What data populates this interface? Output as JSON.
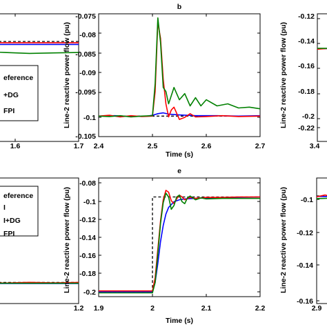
{
  "colors": {
    "reference": "#000000",
    "blue": "#0000ff",
    "red": "#ff0000",
    "green": "#008000"
  },
  "chart_data": [
    {
      "type": "line",
      "panel": "top-left",
      "title": "",
      "xlabel": "",
      "ylabel": "",
      "xlim": [
        1.58,
        1.7
      ],
      "ylim": [
        -0.105,
        -0.075
      ],
      "xticks": [
        "1.6",
        "1.7"
      ],
      "yticks": [],
      "grid": false,
      "legend": {
        "placement": "bottom-left",
        "entries": [
          "eference",
          "+DG",
          "FPI"
        ]
      },
      "series": [
        {
          "color": "#000000",
          "dashed": true,
          "x": [
            1.58,
            1.7
          ],
          "y": [
            -0.0815,
            -0.0815
          ]
        },
        {
          "color": "#0000ff",
          "x": [
            1.58,
            1.7
          ],
          "y": [
            -0.0822,
            -0.0822
          ]
        },
        {
          "color": "#ff0000",
          "x": [
            1.58,
            1.7
          ],
          "y": [
            -0.0818,
            -0.0818
          ]
        },
        {
          "color": "#008000",
          "x": [
            1.58,
            1.6,
            1.62,
            1.64,
            1.66,
            1.68,
            1.7
          ],
          "y": [
            -0.0832,
            -0.0834,
            -0.0838,
            -0.0841,
            -0.0843,
            -0.0842,
            -0.0841
          ]
        }
      ]
    },
    {
      "type": "line",
      "panel": "top-middle",
      "title": "b",
      "xlabel": "Time (s)",
      "ylabel": "Line-2 reactive power flow (pu)",
      "xlim": [
        2.4,
        2.7
      ],
      "ylim": [
        -0.105,
        -0.075
      ],
      "xticks": [
        "2.4",
        "2.5",
        "2.6",
        "2.7"
      ],
      "yticks": [
        "-0.075",
        "-0.08",
        "-0.085",
        "-0.09",
        "-0.095",
        "-0.1",
        "-0.105"
      ],
      "grid": false,
      "series": [
        {
          "color": "#000000",
          "dashed": true,
          "x": [
            2.4,
            2.7
          ],
          "y": [
            -0.1,
            -0.1
          ]
        },
        {
          "color": "#0000ff",
          "x": [
            2.4,
            2.43,
            2.46,
            2.49,
            2.5,
            2.51,
            2.52,
            2.53,
            2.55,
            2.58,
            2.62,
            2.66,
            2.7
          ],
          "y": [
            -0.1,
            -0.0999,
            -0.1001,
            -0.1,
            -0.0998,
            -0.0994,
            -0.0992,
            -0.0995,
            -0.0997,
            -0.0999,
            -0.0999,
            -0.1,
            -0.0999
          ]
        },
        {
          "color": "#ff0000",
          "x": [
            2.4,
            2.42,
            2.44,
            2.46,
            2.48,
            2.5,
            2.505,
            2.51,
            2.515,
            2.52,
            2.525,
            2.53,
            2.535,
            2.54,
            2.545,
            2.55,
            2.56,
            2.57,
            2.58,
            2.6,
            2.63,
            2.66,
            2.7
          ],
          "y": [
            -0.1,
            -0.0998,
            -0.1002,
            -0.0999,
            -0.1001,
            -0.1,
            -0.094,
            -0.077,
            -0.081,
            -0.091,
            -0.097,
            -0.1002,
            -0.0985,
            -0.0978,
            -0.0993,
            -0.1008,
            -0.1003,
            -0.0994,
            -0.1002,
            -0.1001,
            -0.0999,
            -0.1001,
            -0.1
          ]
        },
        {
          "color": "#008000",
          "x": [
            2.4,
            2.42,
            2.44,
            2.46,
            2.48,
            2.5,
            2.505,
            2.51,
            2.515,
            2.52,
            2.525,
            2.53,
            2.54,
            2.55,
            2.56,
            2.57,
            2.58,
            2.59,
            2.6,
            2.62,
            2.64,
            2.66,
            2.68,
            2.7
          ],
          "y": [
            -0.1,
            -0.1001,
            -0.0999,
            -0.1002,
            -0.1,
            -0.0999,
            -0.092,
            -0.076,
            -0.082,
            -0.093,
            -0.094,
            -0.097,
            -0.093,
            -0.096,
            -0.0945,
            -0.0975,
            -0.0955,
            -0.0975,
            -0.096,
            -0.0975,
            -0.097,
            -0.098,
            -0.0978,
            -0.0982
          ]
        }
      ]
    },
    {
      "type": "line",
      "panel": "top-right",
      "title": "",
      "xlabel": "",
      "ylabel": "Line-2 reactive power flow (pu)",
      "xlim": [
        3.4,
        3.6
      ],
      "ylim": [
        -0.23,
        -0.12
      ],
      "xticks": [
        "3.4"
      ],
      "yticks": [
        "-0.12",
        "-0.14",
        "-0.16",
        "-0.18",
        "-0.2",
        "-0.22"
      ],
      "grid": false,
      "series": [
        {
          "color": "#000000",
          "dashed": true,
          "x": [
            3.4,
            3.6
          ],
          "y": [
            -0.15,
            -0.15
          ]
        },
        {
          "color": "#0000ff",
          "x": [
            3.4,
            3.6
          ],
          "y": [
            -0.15,
            -0.15
          ]
        },
        {
          "color": "#ff0000",
          "x": [
            3.4,
            3.42,
            3.44,
            3.46,
            3.48,
            3.5,
            3.52,
            3.54,
            3.56,
            3.58,
            3.6
          ],
          "y": [
            -0.1505,
            -0.1495,
            -0.1505,
            -0.1497,
            -0.1503,
            -0.1498,
            -0.1503,
            -0.1497,
            -0.1502,
            -0.1498,
            -0.1502
          ]
        },
        {
          "color": "#008000",
          "x": [
            3.4,
            3.6
          ],
          "y": [
            -0.1498,
            -0.1498
          ]
        }
      ]
    },
    {
      "type": "line",
      "panel": "bottom-left",
      "title": "",
      "xlabel": "",
      "ylabel": "",
      "xlim": [
        1.08,
        1.2
      ],
      "ylim": [
        -0.205,
        -0.08
      ],
      "xticks": [
        "1.2"
      ],
      "yticks": [],
      "grid": false,
      "legend": {
        "placement": "top-left",
        "entries": [
          "eference",
          "I",
          "I+DG",
          "FPI"
        ]
      },
      "series": [
        {
          "color": "#000000",
          "dashed": true,
          "x": [
            1.08,
            1.2
          ],
          "y": [
            -0.184,
            -0.184
          ]
        },
        {
          "color": "#0000ff",
          "x": [
            1.08,
            1.2
          ],
          "y": [
            -0.185,
            -0.185
          ]
        },
        {
          "color": "#ff0000",
          "x": [
            1.08,
            1.1,
            1.12,
            1.14,
            1.16,
            1.18,
            1.2
          ],
          "y": [
            -0.1835,
            -0.1845,
            -0.1838,
            -0.1846,
            -0.1839,
            -0.1844,
            -0.184
          ]
        },
        {
          "color": "#008000",
          "x": [
            1.08,
            1.2
          ],
          "y": [
            -0.1848,
            -0.1848
          ]
        }
      ]
    },
    {
      "type": "line",
      "panel": "bottom-middle",
      "title": "e",
      "xlabel": "Time (s)",
      "ylabel": "Line-2 reactive power flow (pu)",
      "xlim": [
        1.9,
        2.2
      ],
      "ylim": [
        -0.205,
        -0.08
      ],
      "xticks": [
        "1.9",
        "2",
        "2.1",
        "2.2"
      ],
      "yticks": [
        "-0.08",
        "-0.1",
        "-0.12",
        "-0.14",
        "-0.16",
        "-0.18",
        "-0.2"
      ],
      "grid": false,
      "series": [
        {
          "color": "#000000",
          "dashed": true,
          "x": [
            1.9,
            2.0,
            2.0,
            2.2
          ],
          "y": [
            -0.2,
            -0.2,
            -0.1,
            -0.1
          ]
        },
        {
          "color": "#0000ff",
          "x": [
            1.9,
            1.95,
            2.0,
            2.005,
            2.01,
            2.015,
            2.02,
            2.025,
            2.03,
            2.04,
            2.05,
            2.06,
            2.08,
            2.1,
            2.15,
            2.2
          ],
          "y": [
            -0.2,
            -0.2,
            -0.2,
            -0.19,
            -0.17,
            -0.147,
            -0.13,
            -0.118,
            -0.111,
            -0.105,
            -0.103,
            -0.102,
            -0.1015,
            -0.101,
            -0.1005,
            -0.1
          ]
        },
        {
          "color": "#ff0000",
          "x": [
            1.9,
            1.95,
            2.0,
            2.005,
            2.01,
            2.015,
            2.02,
            2.025,
            2.03,
            2.035,
            2.04,
            2.045,
            2.05,
            2.055,
            2.06,
            2.07,
            2.08,
            2.1,
            2.13,
            2.16,
            2.2
          ],
          "y": [
            -0.199,
            -0.199,
            -0.199,
            -0.185,
            -0.155,
            -0.125,
            -0.103,
            -0.093,
            -0.095,
            -0.104,
            -0.107,
            -0.102,
            -0.098,
            -0.1,
            -0.103,
            -0.1005,
            -0.1015,
            -0.1005,
            -0.1005,
            -0.1,
            -0.1
          ]
        },
        {
          "color": "#008000",
          "x": [
            1.9,
            1.95,
            2.0,
            2.005,
            2.01,
            2.015,
            2.02,
            2.025,
            2.03,
            2.035,
            2.04,
            2.045,
            2.05,
            2.055,
            2.06,
            2.065,
            2.07,
            2.08,
            2.09,
            2.1,
            2.13,
            2.16,
            2.2
          ],
          "y": [
            -0.201,
            -0.201,
            -0.201,
            -0.19,
            -0.16,
            -0.128,
            -0.106,
            -0.096,
            -0.1,
            -0.113,
            -0.109,
            -0.1,
            -0.098,
            -0.105,
            -0.107,
            -0.101,
            -0.099,
            -0.103,
            -0.101,
            -0.102,
            -0.1015,
            -0.1015,
            -0.1015
          ]
        }
      ]
    },
    {
      "type": "line",
      "panel": "bottom-right",
      "title": "",
      "xlabel": "",
      "ylabel": "Line-2 reactive power flow (pu)",
      "xlim": [
        2.9,
        3.1
      ],
      "ylim": [
        -0.16,
        -0.09
      ],
      "xticks": [
        "2.9",
        "3"
      ],
      "yticks": [
        "-0.1",
        "-0.12",
        "-0.14",
        "-0.16"
      ],
      "grid": false,
      "series": [
        {
          "color": "#000000",
          "dashed": true,
          "x": [
            2.9,
            3.1
          ],
          "y": [
            -0.1,
            -0.1
          ]
        },
        {
          "color": "#0000ff",
          "x": [
            2.9,
            3.1
          ],
          "y": [
            -0.1003,
            -0.1003
          ]
        },
        {
          "color": "#ff0000",
          "x": [
            2.9,
            2.91,
            2.92,
            2.93,
            2.94,
            2.95,
            2.96,
            2.97,
            2.98,
            2.99,
            3.0,
            3.02,
            3.04,
            3.06,
            3.08,
            3.1
          ],
          "y": [
            -0.1005,
            -0.0995,
            -0.1005,
            -0.0995,
            -0.1006,
            -0.0995,
            -0.1005,
            -0.0996,
            -0.1005,
            -0.0996,
            -0.1004,
            -0.0997,
            -0.1003,
            -0.0998,
            -0.1003,
            -0.1
          ]
        },
        {
          "color": "#008000",
          "x": [
            2.9,
            2.92,
            2.94,
            2.96,
            2.98,
            3.0,
            3.1
          ],
          "y": [
            -0.1015,
            -0.1012,
            -0.1016,
            -0.1012,
            -0.1015,
            -0.1013,
            -0.1013
          ]
        }
      ]
    }
  ]
}
